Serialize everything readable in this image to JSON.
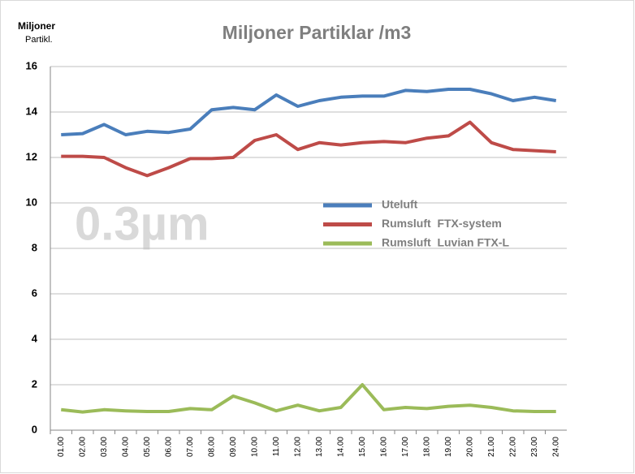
{
  "chart_data": {
    "type": "line",
    "title": "Miljoner Partiklar /m3",
    "ylabel": [
      "Miljoner",
      "Partikl."
    ],
    "annotation": "0.3µm",
    "categories": [
      "01.00",
      "02.00",
      "03.00",
      "04.00",
      "05.00",
      "06.00",
      "07.00",
      "08.00",
      "09.00",
      "10.00",
      "11.00",
      "12.00",
      "13.00",
      "14.00",
      "15.00",
      "16.00",
      "17.00",
      "18.00",
      "19.00",
      "20.00",
      "21.00",
      "22.00",
      "23.00",
      "24.00"
    ],
    "series": [
      {
        "name": "Uteluft",
        "color": "#4a7ebb",
        "values": [
          13.0,
          13.05,
          13.45,
          13.0,
          13.15,
          13.1,
          13.25,
          14.1,
          14.2,
          14.1,
          14.75,
          14.25,
          14.5,
          14.65,
          14.7,
          14.7,
          14.95,
          14.9,
          15.0,
          15.0,
          14.8,
          14.5,
          14.65,
          14.5
        ]
      },
      {
        "name": "Rumsluft  FTX-system",
        "color": "#be4b48",
        "values": [
          12.05,
          12.05,
          12.0,
          11.55,
          11.2,
          11.55,
          11.95,
          11.95,
          12.0,
          12.75,
          13.0,
          12.35,
          12.65,
          12.55,
          12.65,
          12.7,
          12.65,
          12.85,
          12.95,
          13.55,
          12.65,
          12.35,
          12.3,
          12.25
        ]
      },
      {
        "name": "Rumsluft  Luvian FTX-L",
        "color": "#9bbb59",
        "values": [
          0.9,
          0.8,
          0.9,
          0.85,
          0.82,
          0.82,
          0.95,
          0.9,
          1.5,
          1.2,
          0.85,
          1.1,
          0.85,
          1.0,
          2.0,
          0.9,
          1.0,
          0.95,
          1.05,
          1.1,
          1.0,
          0.85,
          0.82,
          0.82
        ]
      }
    ],
    "ylim": [
      0,
      16
    ],
    "yticks": [
      0,
      2,
      4,
      6,
      8,
      10,
      12,
      14,
      16
    ],
    "grid": true
  }
}
